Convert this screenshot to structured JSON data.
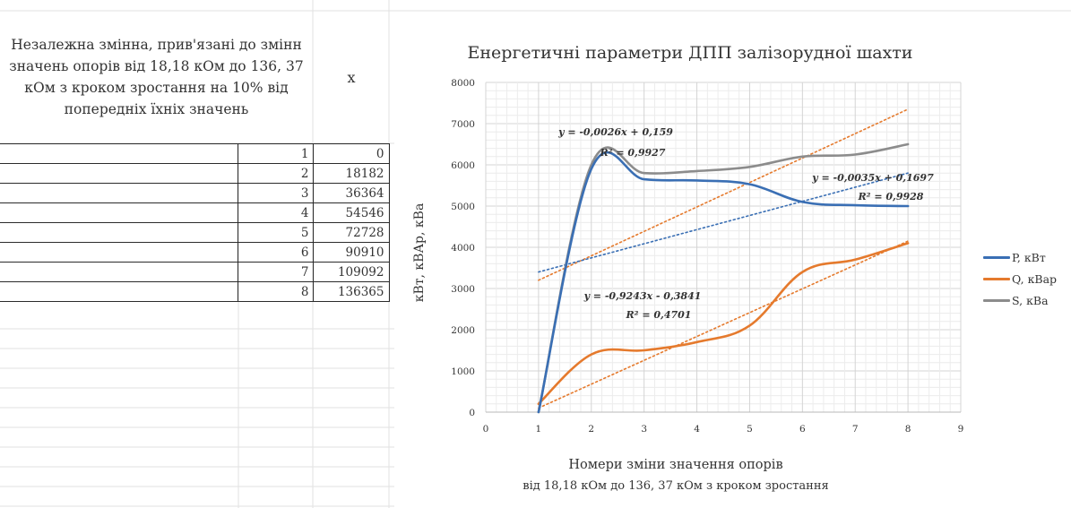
{
  "table": {
    "header": "Незалежна змінна, прив'язані до змінн значень опорів від 18,18 кОм до 136, 37 кОм з кроком зростання на 10% від попередніх їхніх значень",
    "x_header": "x",
    "rows": [
      {
        "n": "1",
        "x": "0"
      },
      {
        "n": "2",
        "x": "18182"
      },
      {
        "n": "3",
        "x": "36364"
      },
      {
        "n": "4",
        "x": "54546"
      },
      {
        "n": "5",
        "x": "72728"
      },
      {
        "n": "6",
        "x": "90910"
      },
      {
        "n": "7",
        "x": "109092"
      },
      {
        "n": "8",
        "x": "136365"
      }
    ]
  },
  "chart_data": {
    "type": "line",
    "title": "Енергетичні параметри ДПП залізорудної шахти",
    "xlabel_line1": "Номери зміни значення опорів",
    "xlabel_line2": "від 18,18 кОм до 136, 37 кОм з кроком зростання",
    "ylabel": "кВт, кВАр, кВа",
    "xlim": [
      0,
      9
    ],
    "ylim": [
      0,
      8000
    ],
    "x_ticks": [
      "0",
      "1",
      "2",
      "3",
      "4",
      "5",
      "6",
      "7",
      "8",
      "9"
    ],
    "y_ticks": [
      "0",
      "1000",
      "2000",
      "3000",
      "4000",
      "5000",
      "6000",
      "7000",
      "8000"
    ],
    "grid": true,
    "smooth": true,
    "legend_position": "right",
    "x": [
      1,
      2,
      3,
      4,
      5,
      6,
      7,
      8
    ],
    "series": [
      {
        "name": "P, кВт",
        "color": "#3a6fb4",
        "values": [
          0,
          5900,
          5650,
          5620,
          5530,
          5100,
          5020,
          5000
        ]
      },
      {
        "name": "Q, кВар",
        "color": "#e57a2d",
        "values": [
          200,
          1400,
          1500,
          1700,
          2100,
          3400,
          3700,
          4100
        ]
      },
      {
        "name": "S, кВа",
        "color": "#8c8c8c",
        "values": [
          0,
          6000,
          5800,
          5850,
          5950,
          6200,
          6250,
          6500
        ]
      }
    ],
    "trendlines": [
      {
        "color": "#e57a2d",
        "x": [
          1,
          8
        ],
        "y": [
          3200,
          7350
        ]
      },
      {
        "color": "#3a6fb4",
        "x": [
          1,
          8
        ],
        "y": [
          3400,
          5800
        ]
      },
      {
        "color": "#e57a2d",
        "x": [
          1,
          8
        ],
        "y": [
          100,
          4150
        ]
      }
    ],
    "annotations": [
      {
        "line1": "y = -0,0026x + 0,159",
        "line2": "R² = 0,9927"
      },
      {
        "line1": "y = -0,0035x + 0,1697",
        "line2": "R² = 0,9928"
      },
      {
        "line1": "y = -0,9243x - 0,3841",
        "line2": "R² = 0,4701"
      }
    ]
  }
}
